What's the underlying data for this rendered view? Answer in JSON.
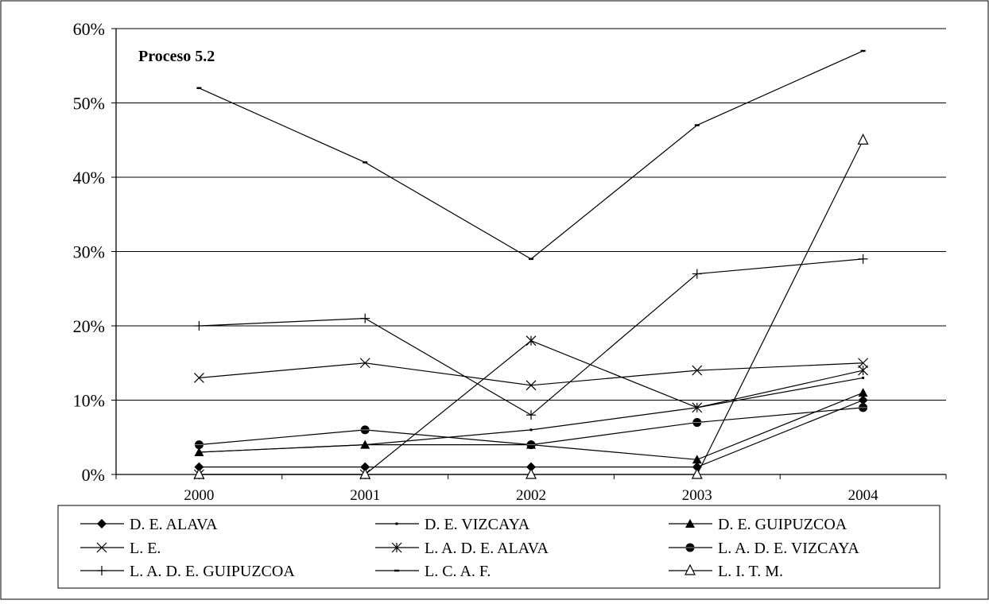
{
  "chart_data": {
    "type": "line",
    "title": "Proceso 5.2",
    "xlabel": "",
    "ylabel": "",
    "categories": [
      "2000",
      "2001",
      "2002",
      "2003",
      "2004"
    ],
    "ylim": [
      0,
      60
    ],
    "yticks": [
      0,
      10,
      20,
      30,
      40,
      50,
      60
    ],
    "ytick_labels": [
      "0%",
      "10%",
      "20%",
      "30%",
      "40%",
      "50%",
      "60%"
    ],
    "grid": "horizontal",
    "legend_position": "bottom",
    "line_color": "#000000",
    "series": [
      {
        "name": "D. E. ALAVA",
        "marker": "diamond",
        "values": [
          1,
          1,
          1,
          1,
          10
        ]
      },
      {
        "name": "D. E. VIZCAYA",
        "marker": "dot",
        "values": [
          3,
          4,
          6,
          9,
          13
        ]
      },
      {
        "name": "D. E. GUIPUZCOA",
        "marker": "triangle",
        "values": [
          3,
          4,
          4,
          2,
          11
        ]
      },
      {
        "name": "L. E.",
        "marker": "x",
        "values": [
          13,
          15,
          12,
          14,
          15
        ]
      },
      {
        "name": "L. A. D. E. ALAVA",
        "marker": "star",
        "values": [
          0,
          0,
          18,
          9,
          14
        ]
      },
      {
        "name": "L. A. D. E. VIZCAYA",
        "marker": "circle",
        "values": [
          4,
          6,
          4,
          7,
          9
        ]
      },
      {
        "name": "L. A. D. E. GUIPUZCOA",
        "marker": "plus",
        "values": [
          20,
          21,
          8,
          27,
          29
        ]
      },
      {
        "name": "L. C. A. F.",
        "marker": "dash",
        "values": [
          52,
          42,
          29,
          47,
          57
        ]
      },
      {
        "name": "L. I. T. M.",
        "marker": "open-triangle",
        "values": [
          0,
          0,
          0,
          0,
          45
        ]
      }
    ]
  }
}
